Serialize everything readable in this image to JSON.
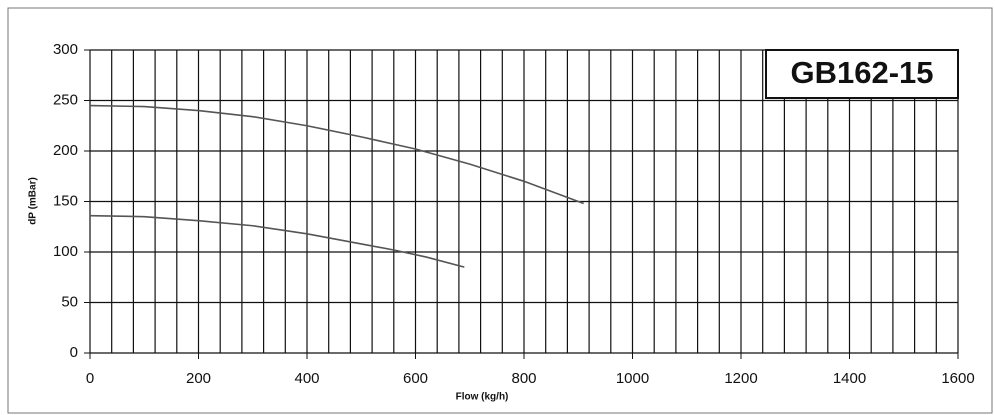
{
  "chart_data": {
    "type": "line",
    "title": "GB162-15",
    "x_label": "Flow (kg/h)",
    "y_label": "dP (mBar)",
    "xlim": [
      0,
      1600
    ],
    "ylim": [
      0,
      300
    ],
    "xticks": [
      0,
      200,
      400,
      600,
      800,
      1000,
      1200,
      1400,
      1600
    ],
    "yticks": [
      0,
      50,
      100,
      150,
      200,
      250,
      300
    ],
    "xgrid": [
      0,
      40,
      80,
      120,
      160,
      200,
      240,
      280,
      320,
      360,
      400,
      440,
      480,
      520,
      560,
      600,
      640,
      680,
      720,
      760,
      800,
      840,
      880,
      920,
      960,
      1000,
      1040,
      1080,
      1120,
      1160,
      1200,
      1240,
      1280,
      1320,
      1360,
      1400,
      1440,
      1480,
      1520,
      1560,
      1600
    ],
    "grid": true,
    "series": [
      {
        "color": "#555555",
        "x": [
          0,
          100,
          200,
          300,
          400,
          500,
          600,
          700,
          800,
          910
        ],
        "values": [
          245,
          244,
          240,
          234,
          225,
          214,
          202,
          187,
          170,
          148
        ]
      },
      {
        "color": "#555555",
        "x": [
          0,
          100,
          200,
          300,
          400,
          500,
          560,
          620,
          690
        ],
        "values": [
          136,
          135,
          131,
          126,
          118,
          108,
          102,
          95,
          85
        ]
      }
    ]
  }
}
